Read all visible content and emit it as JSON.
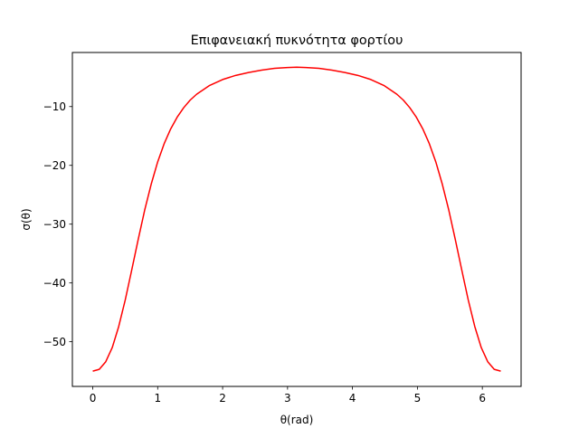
{
  "chart_data": {
    "type": "line",
    "title": "Επιφανειακή πυκνότητα φορτίου",
    "xlabel": "θ(rad)",
    "ylabel": "σ(θ)",
    "xlim": [
      -0.314,
      6.597
    ],
    "ylim": [
      -57.6,
      -0.8
    ],
    "xticks": [
      0,
      1,
      2,
      3,
      4,
      5,
      6
    ],
    "xtick_labels": [
      "0",
      "1",
      "2",
      "3",
      "4",
      "5",
      "6"
    ],
    "yticks": [
      -10,
      -20,
      -30,
      -40,
      -50
    ],
    "ytick_labels": [
      "−10",
      "−20",
      "−30",
      "−40",
      "−50"
    ],
    "grid": false,
    "legend": "none",
    "series": [
      {
        "color": "#ff0000",
        "x": [
          0,
          0.1,
          0.2,
          0.3,
          0.4,
          0.5,
          0.6,
          0.7,
          0.8,
          0.9,
          1.0,
          1.1,
          1.2,
          1.3,
          1.4,
          1.5,
          1.6,
          1.8,
          2.0,
          2.2,
          2.4,
          2.6,
          2.8,
          3.0,
          3.1416,
          3.2832,
          3.4832,
          3.6832,
          3.8832,
          4.0832,
          4.2832,
          4.4832,
          4.6832,
          4.7832,
          4.8832,
          4.9832,
          5.0832,
          5.1832,
          5.2832,
          5.3832,
          5.4832,
          5.5832,
          5.6832,
          5.7832,
          5.8832,
          5.9832,
          6.0832,
          6.1832,
          6.2832
        ],
        "y": [
          -55.0,
          -54.7,
          -53.4,
          -51.0,
          -47.4,
          -42.9,
          -37.8,
          -32.6,
          -27.6,
          -23.2,
          -19.4,
          -16.3,
          -13.8,
          -11.8,
          -10.2,
          -8.9,
          -7.9,
          -6.4,
          -5.4,
          -4.7,
          -4.2,
          -3.8,
          -3.5,
          -3.35,
          -3.3,
          -3.35,
          -3.5,
          -3.8,
          -4.2,
          -4.7,
          -5.4,
          -6.4,
          -7.9,
          -8.9,
          -10.2,
          -11.8,
          -13.8,
          -16.3,
          -19.4,
          -23.2,
          -27.6,
          -32.6,
          -37.8,
          -42.9,
          -47.4,
          -51.0,
          -53.4,
          -54.7,
          -55.0
        ]
      }
    ]
  }
}
